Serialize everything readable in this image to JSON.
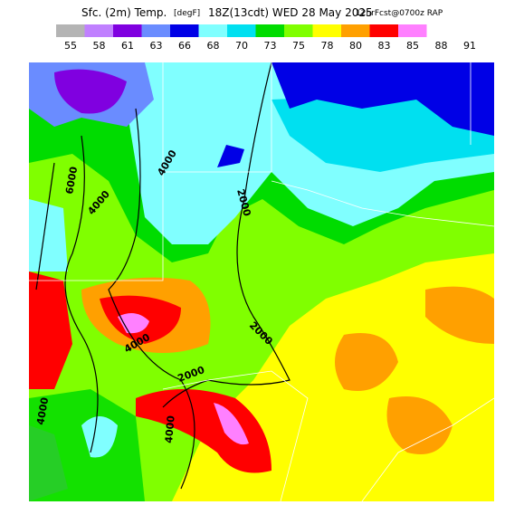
{
  "header": {
    "title_parts": [
      "Sfc. (2m) Temp.",
      "[degF]",
      "18Z(13cdt) WED 28 May 2025",
      "12hrFcst@0700z RAP"
    ]
  },
  "legend": {
    "labels": [
      "55",
      "58",
      "61",
      "63",
      "66",
      "68",
      "70",
      "73",
      "75",
      "78",
      "80",
      "83",
      "85",
      "88",
      "91"
    ],
    "colors": [
      "#b4b4b4",
      "#c080ff",
      "#8000e0",
      "#6a8cff",
      "#0000e6",
      "#80ffff",
      "#00e0f0",
      "#00dc00",
      "#80ff00",
      "#ffff00",
      "#ffa000",
      "#ff0000",
      "#ff80ff"
    ]
  },
  "contour_labels": [
    "6000",
    "4000",
    "4000",
    "2000",
    "2000",
    "4000",
    "2000",
    "4000",
    "4000"
  ]
}
